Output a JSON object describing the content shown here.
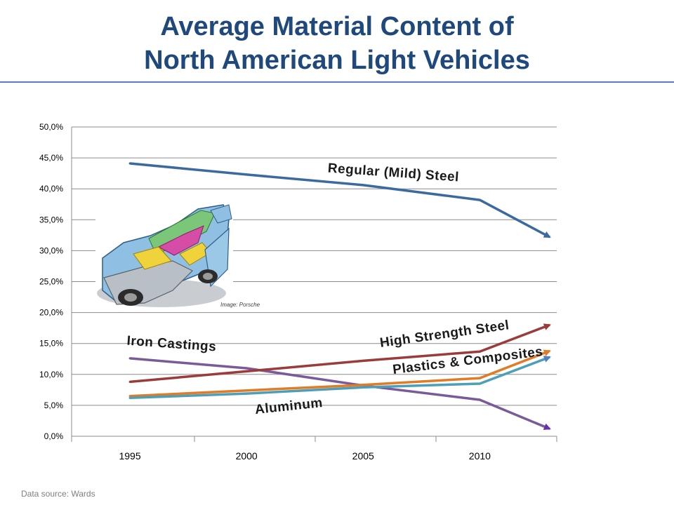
{
  "page": {
    "title_line1": "Average Material Content of",
    "title_line2": "North American Light Vehicles",
    "source": "Data source: Wards"
  },
  "image_credit": "Image: Porsche",
  "chart_data": {
    "type": "line",
    "title": "",
    "xlabel": "",
    "ylabel": "",
    "x": [
      1995,
      2000,
      2005,
      2010,
      2013
    ],
    "x_ticks": [
      "1995",
      "2000",
      "2005",
      "2010"
    ],
    "ylim": [
      0,
      50
    ],
    "y_ticks": [
      "0,0%",
      "5,0%",
      "10,0%",
      "15,0%",
      "20,0%",
      "25,0%",
      "30,0%",
      "35,0%",
      "40,0%",
      "45,0%",
      "50,0%"
    ],
    "y_tick_values": [
      0,
      5,
      10,
      15,
      20,
      25,
      30,
      35,
      40,
      45,
      50
    ],
    "grid": "horizontal",
    "legend": "none (series labelled directly on the plot)",
    "series": [
      {
        "name": "Regular (Mild) Steel",
        "color": "#3b6aa0",
        "values": [
          44.1,
          42.3,
          40.6,
          38.2,
          32.2
        ]
      },
      {
        "name": "Iron Castings",
        "color": "#7b5a99",
        "values": [
          12.6,
          11.0,
          8.2,
          5.9,
          1.2
        ]
      },
      {
        "name": "High Strength Steel",
        "color": "#9b3c3a",
        "values": [
          8.8,
          10.5,
          12.2,
          13.7,
          18.0
        ]
      },
      {
        "name": "Plastics & Composites",
        "color": "#e07b26",
        "values": [
          6.5,
          7.4,
          8.3,
          9.4,
          13.8
        ]
      },
      {
        "name": "Aluminum",
        "color": "#4d9fb8",
        "values": [
          6.2,
          6.9,
          7.9,
          8.5,
          12.8
        ]
      }
    ],
    "annotations": [
      {
        "series": "Regular (Mild) Steel",
        "text": "Regular (Mild) Steel"
      },
      {
        "series": "Iron Castings",
        "text": "Iron Castings"
      },
      {
        "series": "High Strength Steel",
        "text": "High Strength Steel"
      },
      {
        "series": "Plastics & Composites",
        "text": "Plastics & Composites"
      },
      {
        "series": "Aluminum",
        "text": "Aluminum"
      }
    ]
  }
}
